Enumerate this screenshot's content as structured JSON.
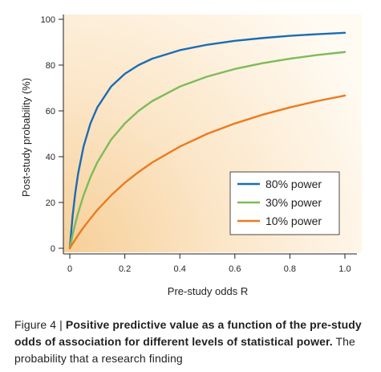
{
  "chart_data": {
    "type": "line",
    "title": "",
    "xlabel": "Pre-study odds R",
    "ylabel": "Post-study probability (%)",
    "xlim": [
      0,
      1.0
    ],
    "ylim": [
      0,
      100
    ],
    "xticks": [
      0,
      0.2,
      0.4,
      0.6,
      0.8,
      1.0
    ],
    "xtick_labels": [
      "0",
      "0.2",
      "0.4",
      "0.6",
      "0.8",
      "1.0"
    ],
    "yticks": [
      0,
      20,
      40,
      60,
      80,
      100
    ],
    "ytick_labels": [
      "0",
      "20",
      "40",
      "60",
      "80",
      "100"
    ],
    "x": [
      0,
      0.01,
      0.02,
      0.03,
      0.05,
      0.075,
      0.1,
      0.15,
      0.2,
      0.25,
      0.3,
      0.4,
      0.5,
      0.6,
      0.7,
      0.8,
      0.9,
      1.0
    ],
    "series": [
      {
        "name": "80% power",
        "color": "#1a6db3",
        "values": [
          0,
          13.8,
          24.2,
          32.4,
          44.4,
          54.5,
          61.5,
          70.6,
          76.2,
          80.0,
          82.8,
          86.5,
          88.9,
          90.6,
          91.8,
          92.8,
          93.5,
          94.1
        ]
      },
      {
        "name": "30% power",
        "color": "#7dbb5a",
        "values": [
          0,
          5.7,
          10.7,
          15.3,
          23.1,
          31.0,
          37.5,
          47.4,
          54.5,
          60.0,
          64.3,
          70.6,
          75.0,
          78.3,
          80.8,
          82.8,
          84.4,
          85.7
        ]
      },
      {
        "name": "10% power",
        "color": "#ec7a1f",
        "values": [
          0,
          2.0,
          3.8,
          5.7,
          9.1,
          13.0,
          16.7,
          23.1,
          28.6,
          33.3,
          37.5,
          44.4,
          50.0,
          54.5,
          58.3,
          61.5,
          64.3,
          66.7
        ]
      }
    ],
    "legend_position": "bottom-right",
    "grid": false
  },
  "caption": {
    "label": "Figure 4 |",
    "bold": "Positive predictive value as a function of the pre-study odds of association for different levels of statistical power.",
    "rest": "The probability that a research finding"
  }
}
